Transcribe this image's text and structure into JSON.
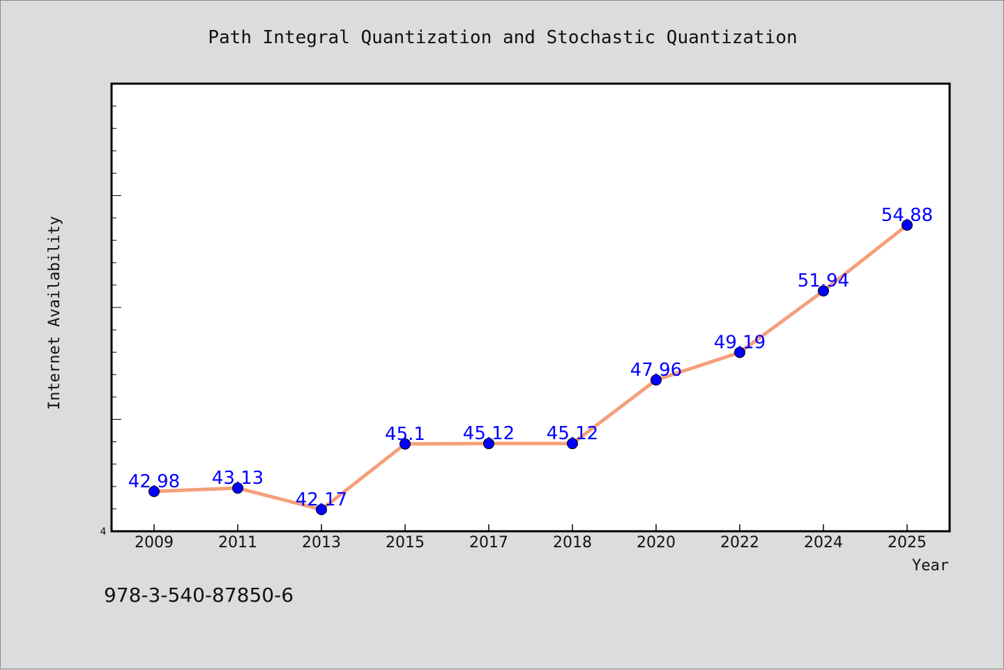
{
  "chart_data": {
    "type": "line",
    "title": "Path Integral Quantization and Stochastic Quantization",
    "xlabel": "Year",
    "ylabel": "Internet Availability",
    "categories": [
      "2009",
      "2011",
      "2013",
      "2015",
      "2017",
      "2018",
      "2020",
      "2022",
      "2024",
      "2025"
    ],
    "series": [
      {
        "values": [
          42.98,
          43.13,
          42.17,
          45.1,
          45.12,
          45.12,
          47.96,
          49.19,
          51.94,
          54.88
        ],
        "labels": [
          "42.98",
          "43.13",
          "42.17",
          "45.1",
          "45.12",
          "45.12",
          "47.96",
          "49.19",
          "51.94",
          "54.88"
        ],
        "line_color": "#f4a07a",
        "marker_color": "#0000ff"
      }
    ],
    "ylim": [
      41.2,
      61.2
    ],
    "y_tick_label": "4",
    "grid": false,
    "legend": "none"
  },
  "footer": {
    "isbn": "978-3-540-87850-6"
  }
}
